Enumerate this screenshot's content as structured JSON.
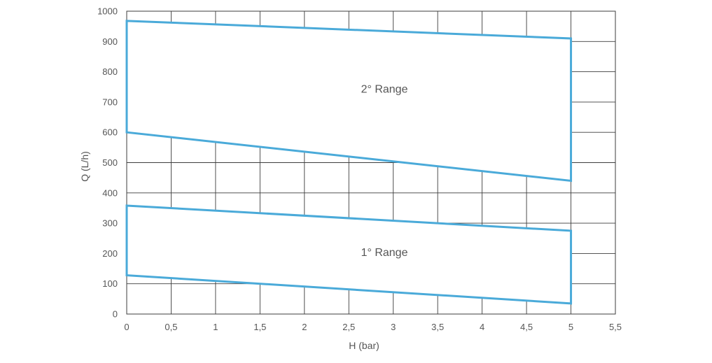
{
  "chart_data": {
    "type": "area",
    "xlabel": "H (bar)",
    "ylabel": "Q (L/h)",
    "xlim": [
      0,
      5.5
    ],
    "ylim": [
      0,
      1000
    ],
    "x_ticks": [
      "0",
      "0,5",
      "1",
      "1,5",
      "2",
      "2,5",
      "3",
      "3,5",
      "4",
      "4,5",
      "5",
      "5,5"
    ],
    "y_ticks": [
      "0",
      "100",
      "200",
      "300",
      "400",
      "500",
      "600",
      "700",
      "800",
      "900",
      "1000"
    ],
    "grid": true,
    "regions": [
      {
        "label": "1° Range",
        "label_at": [
          2.9,
          205
        ],
        "points": [
          [
            0,
            358
          ],
          [
            5,
            275
          ],
          [
            5,
            35
          ],
          [
            0,
            128
          ]
        ]
      },
      {
        "label": "2° Range",
        "label_at": [
          2.9,
          745
        ],
        "points": [
          [
            0,
            968
          ],
          [
            5,
            910
          ],
          [
            5,
            440
          ],
          [
            0,
            600
          ]
        ]
      }
    ],
    "colors": {
      "region_stroke": "#4aaad9",
      "grid": "#3d3d3d",
      "text": "#555555"
    }
  }
}
